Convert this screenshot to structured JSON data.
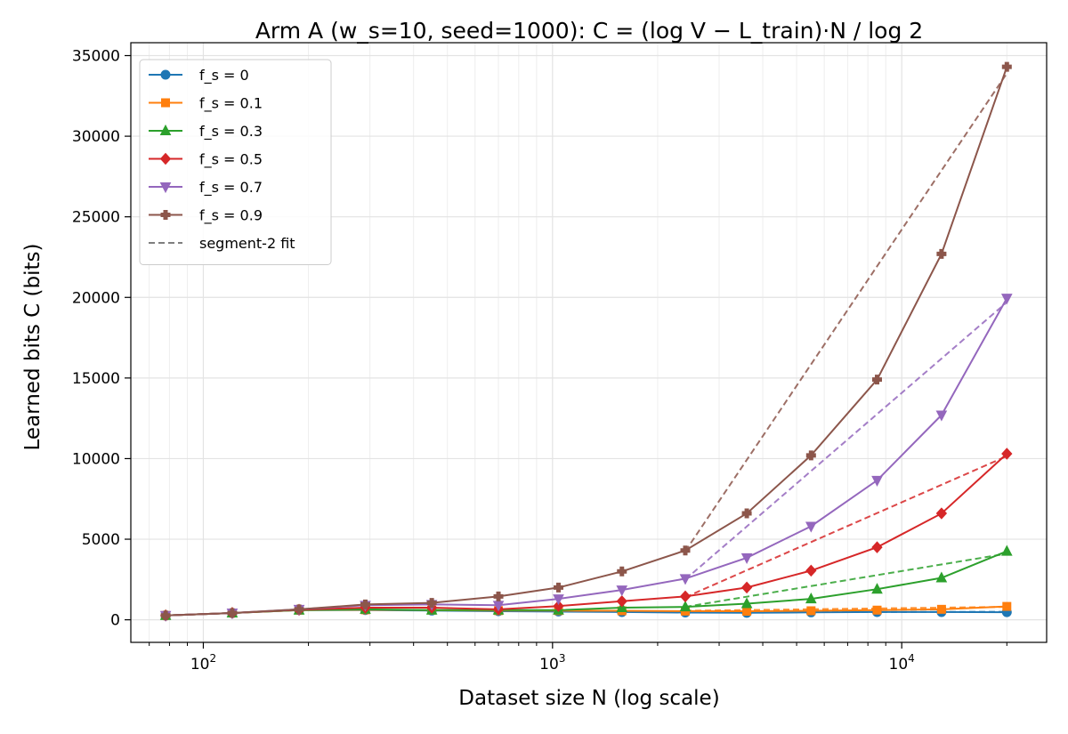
{
  "chart_data": {
    "type": "line",
    "title": "Arm A (w_s=10, seed=1000): C = (log V − L_train)·N / log 2",
    "xlabel": "Dataset size N (log scale)",
    "ylabel": "Learned bits C (bits)",
    "x_scale": "log",
    "xlim": [
      62,
      26000
    ],
    "ylim": [
      -1400,
      35800
    ],
    "grid": true,
    "legend_position": "top-left",
    "x_tick_labels": [
      {
        "base": "10",
        "exp": "2",
        "value": 100
      },
      {
        "base": "10",
        "exp": "3",
        "value": 1000
      },
      {
        "base": "10",
        "exp": "4",
        "value": 10000
      }
    ],
    "y_ticks": [
      0,
      5000,
      10000,
      15000,
      20000,
      25000,
      30000,
      35000
    ],
    "x": [
      78,
      121,
      188,
      291,
      451,
      700,
      1040,
      1580,
      2400,
      3600,
      5500,
      8500,
      13000,
      20000
    ],
    "series": [
      {
        "name": "f_s = 0",
        "color": "#1f77b4",
        "marker": "circle",
        "values": [
          270,
          420,
          600,
          600,
          570,
          530,
          510,
          480,
          450,
          430,
          460,
          480,
          480,
          470
        ]
      },
      {
        "name": "f_s = 0.1",
        "color": "#ff7f0e",
        "marker": "square",
        "values": [
          270,
          420,
          600,
          620,
          600,
          570,
          570,
          560,
          540,
          530,
          560,
          600,
          650,
          830
        ]
      },
      {
        "name": "f_s = 0.3",
        "color": "#2ca02c",
        "marker": "triangle-up",
        "values": [
          270,
          420,
          600,
          650,
          600,
          600,
          600,
          750,
          800,
          1000,
          1300,
          1900,
          2600,
          4250
        ]
      },
      {
        "name": "f_s = 0.5",
        "color": "#d62728",
        "marker": "diamond",
        "values": [
          270,
          420,
          620,
          750,
          750,
          650,
          850,
          1150,
          1450,
          2000,
          3050,
          4500,
          6600,
          10300
        ]
      },
      {
        "name": "f_s = 0.7",
        "color": "#9467bd",
        "marker": "triangle-down",
        "values": [
          270,
          420,
          650,
          900,
          950,
          900,
          1300,
          1850,
          2550,
          3850,
          5800,
          8650,
          12700,
          19950
        ]
      },
      {
        "name": "f_s = 0.9",
        "color": "#8c564b",
        "marker": "plus",
        "values": [
          270,
          420,
          650,
          950,
          1050,
          1450,
          2000,
          3000,
          4300,
          6600,
          10200,
          14900,
          22700,
          34300
        ]
      }
    ],
    "fits": [
      {
        "series": "f_s = 0",
        "x": [
          2400,
          20000
        ],
        "values": [
          460,
          500
        ]
      },
      {
        "series": "f_s = 0.1",
        "x": [
          2400,
          20000
        ],
        "values": [
          560,
          800
        ]
      },
      {
        "series": "f_s = 0.3",
        "x": [
          2400,
          20000
        ],
        "values": [
          800,
          4100
        ]
      },
      {
        "series": "f_s = 0.5",
        "x": [
          2400,
          20000
        ],
        "values": [
          1400,
          10150
        ]
      },
      {
        "series": "f_s = 0.7",
        "x": [
          2400,
          20000
        ],
        "values": [
          2500,
          19700
        ]
      },
      {
        "series": "f_s = 0.9",
        "x": [
          2400,
          20000
        ],
        "values": [
          4250,
          33900
        ]
      }
    ],
    "fit_legend_label": "segment-2 fit",
    "fit_color": "#7f7f7f"
  }
}
